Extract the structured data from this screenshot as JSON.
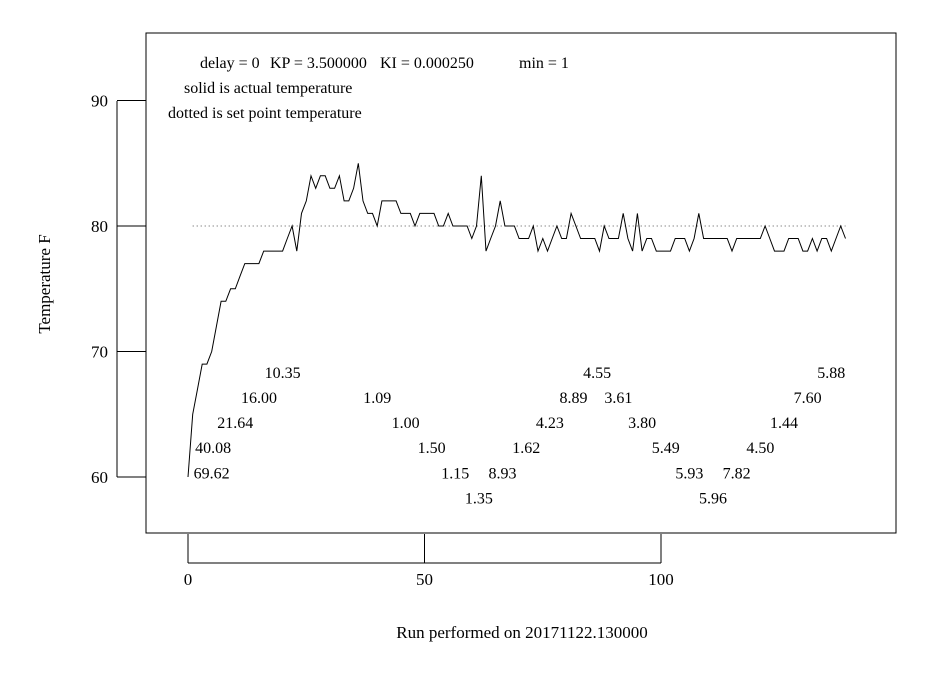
{
  "chart_data": {
    "type": "line",
    "xlabel": "Run performed on 20171122.130000",
    "ylabel": "Temperature F",
    "xlim": [
      0,
      150
    ],
    "ylim": [
      55.5,
      95.5
    ],
    "x_ticks": [
      0,
      50,
      100
    ],
    "y_ticks": [
      60,
      70,
      80,
      90
    ],
    "grid": false,
    "annotations": [
      "delay = 0",
      "KP = 3.500000",
      "KI = 0.000250",
      "min = 1",
      "solid is actual temperature",
      "dotted is set point temperature"
    ],
    "series": [
      {
        "style": "dotted",
        "x": [
          1,
          139
        ],
        "y": [
          80,
          80
        ]
      },
      {
        "style": "solid",
        "x": [
          0,
          1,
          2,
          3,
          4,
          5,
          6,
          7,
          8,
          9,
          10,
          11,
          12,
          13,
          14,
          15,
          16,
          17,
          18,
          19,
          20,
          21,
          22,
          23,
          24,
          25,
          26,
          27,
          28,
          29,
          30,
          31,
          32,
          33,
          34,
          35,
          36,
          37,
          38,
          39,
          40,
          41,
          42,
          43,
          44,
          45,
          46,
          47,
          48,
          49,
          50,
          51,
          52,
          53,
          54,
          55,
          56,
          57,
          58,
          59,
          60,
          61,
          62,
          63,
          64,
          65,
          66,
          67,
          68,
          69,
          70,
          71,
          72,
          73,
          74,
          75,
          76,
          77,
          78,
          79,
          80,
          81,
          82,
          83,
          84,
          85,
          86,
          87,
          88,
          89,
          90,
          91,
          92,
          93,
          94,
          95,
          96,
          97,
          98,
          99,
          100,
          101,
          102,
          103,
          104,
          105,
          106,
          107,
          108,
          109,
          110,
          111,
          112,
          113,
          114,
          115,
          116,
          117,
          118,
          119,
          120,
          121,
          122,
          123,
          124,
          125,
          126,
          127,
          128,
          129,
          130,
          131,
          132,
          133,
          134,
          135,
          136,
          137,
          138,
          139
        ],
        "y": [
          60,
          65,
          67,
          69,
          69,
          70,
          72,
          74,
          74,
          75,
          75,
          76,
          77,
          77,
          77,
          77,
          78,
          78,
          78,
          78,
          78,
          79,
          80,
          78,
          81,
          82,
          84,
          83,
          84,
          84,
          83,
          83,
          84,
          82,
          82,
          83,
          85,
          82,
          81,
          81,
          80,
          82,
          82,
          82,
          82,
          81,
          81,
          81,
          80,
          81,
          81,
          81,
          81,
          80,
          80,
          81,
          80,
          80,
          80,
          80,
          79,
          80,
          84,
          78,
          79,
          80,
          82,
          80,
          80,
          80,
          79,
          79,
          79,
          80,
          78,
          79,
          78,
          79,
          80,
          79,
          79,
          81,
          80,
          79,
          79,
          79,
          79,
          78,
          80,
          79,
          79,
          79,
          81,
          79,
          78,
          81,
          78,
          79,
          79,
          78,
          78,
          78,
          78,
          79,
          79,
          79,
          78,
          79,
          81,
          79,
          79,
          79,
          79,
          79,
          79,
          78,
          79,
          79,
          79,
          79,
          79,
          79,
          80,
          79,
          78,
          78,
          78,
          79,
          79,
          79,
          78,
          78,
          79,
          78,
          79,
          79,
          78,
          79,
          80,
          79
        ]
      }
    ],
    "value_labels": [
      {
        "text": "10.35",
        "x": 20,
        "y": 67.9
      },
      {
        "text": "16.00",
        "x": 15,
        "y": 65.9
      },
      {
        "text": "21.64",
        "x": 10,
        "y": 63.9
      },
      {
        "text": "40.08",
        "x": 5.3,
        "y": 61.9
      },
      {
        "text": "69.62",
        "x": 5,
        "y": 59.9
      },
      {
        "text": "1.09",
        "x": 40,
        "y": 65.9
      },
      {
        "text": "1.00",
        "x": 46,
        "y": 63.9
      },
      {
        "text": "1.50",
        "x": 51.5,
        "y": 61.9
      },
      {
        "text": "1.15",
        "x": 56.5,
        "y": 59.9
      },
      {
        "text": "1.35",
        "x": 61.5,
        "y": 57.9
      },
      {
        "text": "8.93",
        "x": 66.5,
        "y": 59.9
      },
      {
        "text": "1.62",
        "x": 71.5,
        "y": 61.9
      },
      {
        "text": "4.23",
        "x": 76.5,
        "y": 63.9
      },
      {
        "text": "8.89",
        "x": 81.5,
        "y": 65.9
      },
      {
        "text": "4.55",
        "x": 86.5,
        "y": 67.9
      },
      {
        "text": "3.61",
        "x": 91,
        "y": 65.9
      },
      {
        "text": "3.80",
        "x": 96,
        "y": 63.9
      },
      {
        "text": "5.49",
        "x": 101,
        "y": 61.9
      },
      {
        "text": "5.93",
        "x": 106,
        "y": 59.9
      },
      {
        "text": "5.96",
        "x": 111,
        "y": 57.9
      },
      {
        "text": "7.82",
        "x": 116,
        "y": 59.9
      },
      {
        "text": "4.50",
        "x": 121,
        "y": 61.9
      },
      {
        "text": "1.44",
        "x": 126,
        "y": 63.9
      },
      {
        "text": "7.60",
        "x": 131,
        "y": 65.9
      },
      {
        "text": "5.88",
        "x": 136,
        "y": 67.9
      }
    ]
  }
}
